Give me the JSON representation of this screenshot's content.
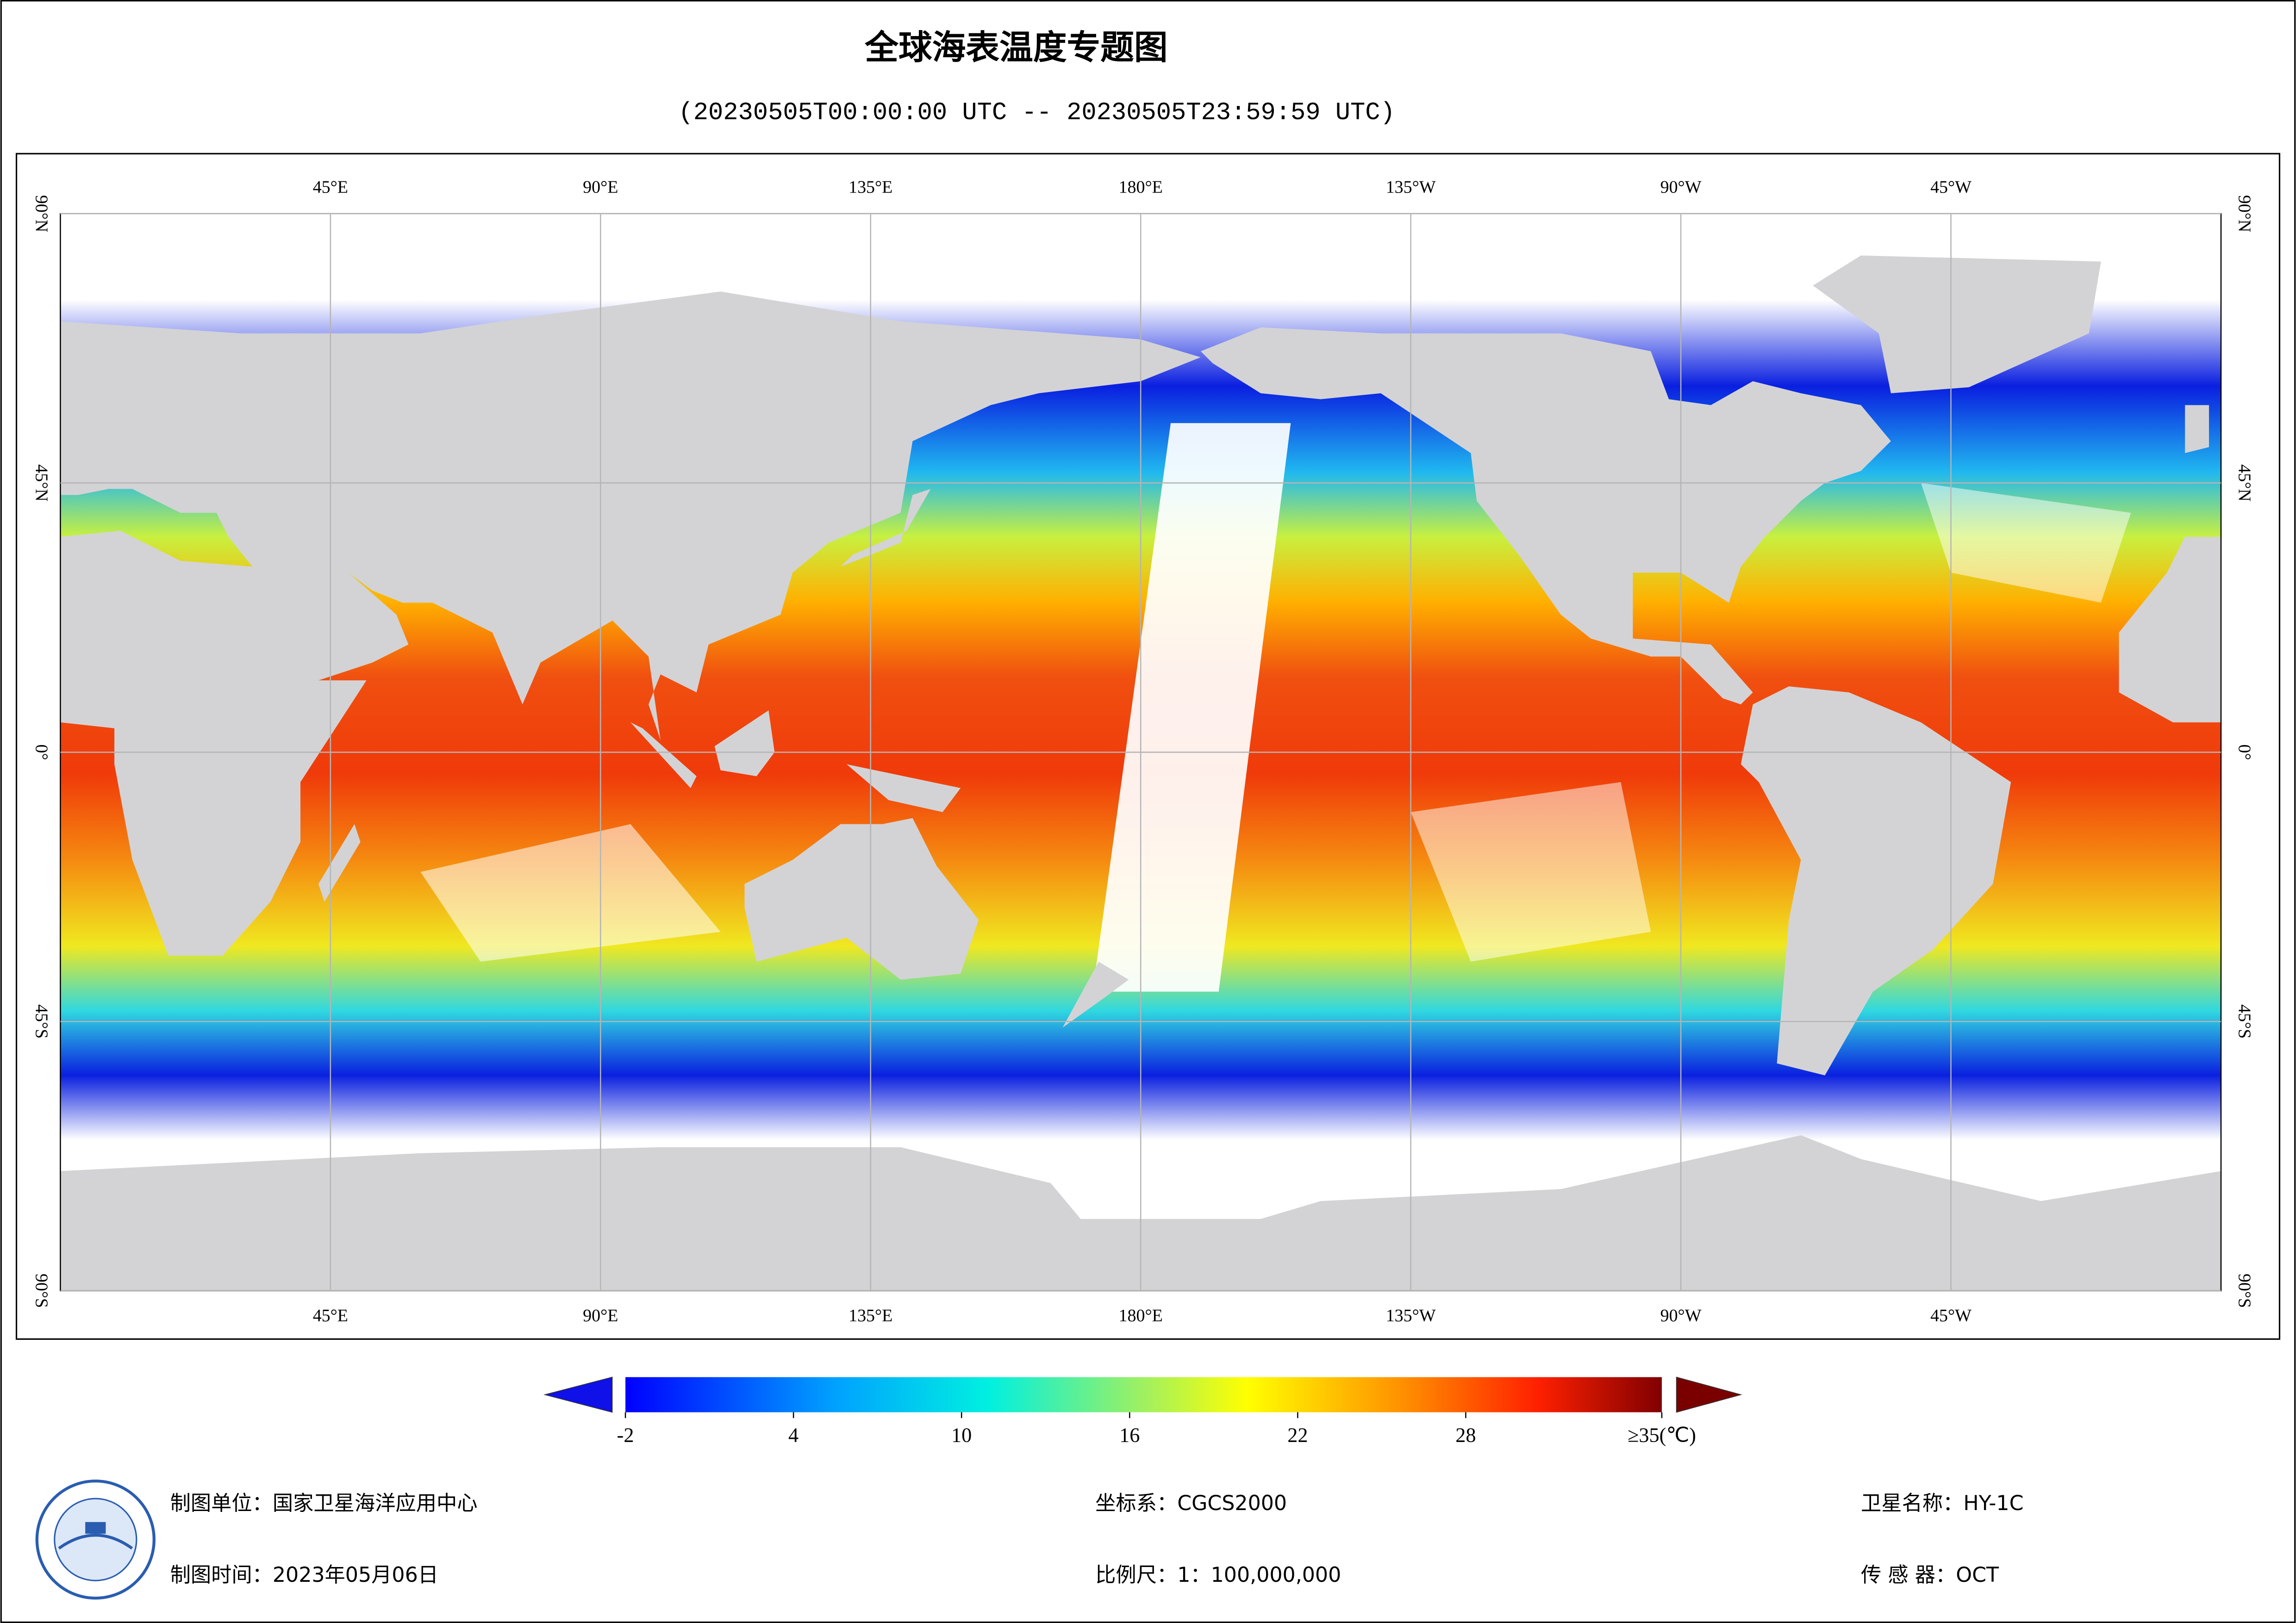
{
  "header": {
    "title": "全球海表温度专题图",
    "subtitle": "(20230505T00:00:00 UTC -- 20230505T23:59:59 UTC)"
  },
  "map": {
    "lon_ticks": [
      {
        "value": 45,
        "label": "45°E"
      },
      {
        "value": 90,
        "label": "90°E"
      },
      {
        "value": 135,
        "label": "135°E"
      },
      {
        "value": 180,
        "label": "180°E"
      },
      {
        "value": 225,
        "label": "135°W"
      },
      {
        "value": 270,
        "label": "90°W"
      },
      {
        "value": 315,
        "label": "45°W"
      }
    ],
    "lat_ticks": [
      {
        "value": 90,
        "label": "90°N"
      },
      {
        "value": 45,
        "label": "45°N"
      },
      {
        "value": 0,
        "label": "0°"
      },
      {
        "value": -45,
        "label": "45°S"
      },
      {
        "value": -90,
        "label": "90°S"
      }
    ]
  },
  "colorbar": {
    "range": [
      -2,
      35
    ],
    "ticks": [
      -2,
      4,
      10,
      16,
      22,
      28,
      {
        "value": 35,
        "label": "≥35(℃)"
      }
    ]
  },
  "footer": {
    "unit": "制图单位：国家卫星海洋应用中心",
    "time": "制图时间：2023年05月06日",
    "crs": "坐标系：CGCS2000",
    "scale": "比例尺：1：100,000,000",
    "satellite": "卫星名称：HY-1C",
    "sensor": "传 感 器：OCT"
  }
}
